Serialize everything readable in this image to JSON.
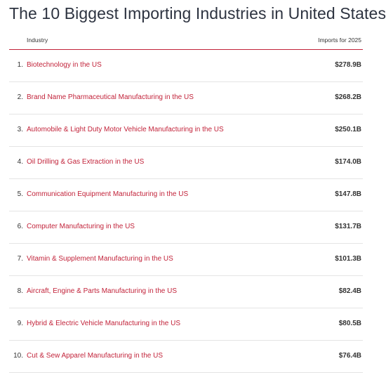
{
  "title": "The 10 Biggest Importing Industries in United States",
  "table": {
    "header": {
      "industry": "Industry",
      "imports": "Imports for 2025"
    },
    "rows": [
      {
        "rank": "1.",
        "industry": "Biotechnology in the US",
        "imports": "$278.9B"
      },
      {
        "rank": "2.",
        "industry": "Brand Name Pharmaceutical Manufacturing in the US",
        "imports": "$268.2B"
      },
      {
        "rank": "3.",
        "industry": "Automobile & Light Duty Motor Vehicle Manufacturing in the US",
        "imports": "$250.1B"
      },
      {
        "rank": "4.",
        "industry": "Oil Drilling & Gas Extraction in the US",
        "imports": "$174.0B"
      },
      {
        "rank": "5.",
        "industry": "Communication Equipment Manufacturing in the US",
        "imports": "$147.8B"
      },
      {
        "rank": "6.",
        "industry": "Computer Manufacturing in the US",
        "imports": "$131.7B"
      },
      {
        "rank": "7.",
        "industry": "Vitamin & Supplement Manufacturing in the US",
        "imports": "$101.3B"
      },
      {
        "rank": "8.",
        "industry": "Aircraft, Engine & Parts Manufacturing in the US",
        "imports": "$82.4B"
      },
      {
        "rank": "9.",
        "industry": "Hybrid & Electric Vehicle Manufacturing in the US",
        "imports": "$80.5B"
      },
      {
        "rank": "10.",
        "industry": "Cut & Sew Apparel Manufacturing in the US",
        "imports": "$76.4B"
      }
    ]
  },
  "colors": {
    "link": "#c2233a",
    "header_rule": "#c2233a",
    "row_rule": "#e4e4e4"
  }
}
